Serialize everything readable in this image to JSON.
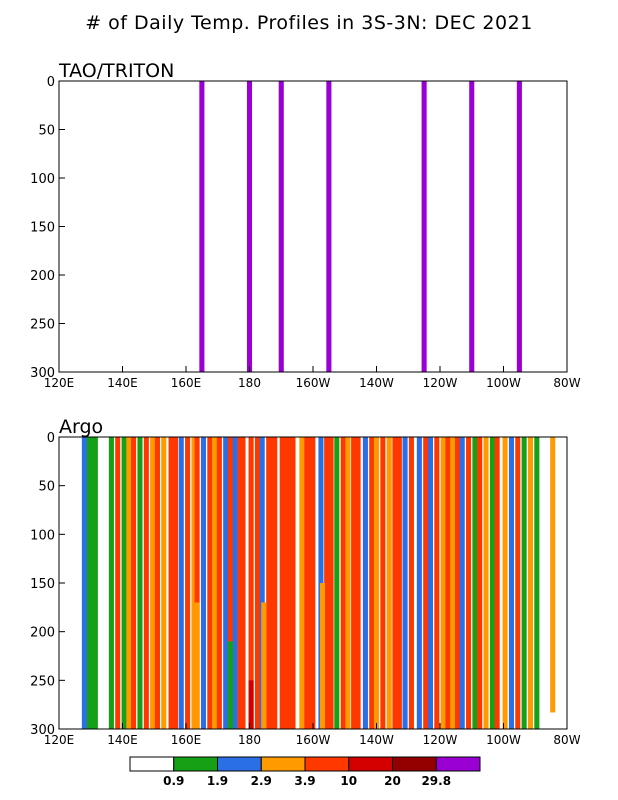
{
  "title": "# of Daily Temp. Profiles in 3S-3N: DEC 2021",
  "legend": {
    "colors": [
      "#ffffff",
      "#15a015",
      "#2a6fe6",
      "#ff9b00",
      "#ff3800",
      "#d40000",
      "#940000",
      "#9a00d4"
    ],
    "labels": [
      "0.9",
      "1.9",
      "2.9",
      "3.9",
      "10",
      "20",
      "29.8"
    ]
  },
  "chart_data": [
    {
      "type": "bar",
      "panel_label": "TAO/TRITON",
      "x_ticks": [
        120,
        140,
        160,
        180,
        200,
        220,
        240,
        260,
        280
      ],
      "x_tick_labels": [
        "120E",
        "140E",
        "160E",
        "180",
        "160W",
        "140W",
        "120W",
        "100W",
        "80W"
      ],
      "y_ticks": [
        0,
        50,
        100,
        150,
        200,
        250,
        300
      ],
      "y_tick_labels": [
        "0",
        "50",
        "100",
        "150",
        "200",
        "250",
        "300"
      ],
      "xlim": [
        120,
        280
      ],
      "ylim": [
        0,
        300
      ],
      "y_reversed": true,
      "grid": false,
      "bars": [
        {
          "lon": 165,
          "top": 0,
          "bottom": 300,
          "color": "#9a00d4",
          "count": 31
        },
        {
          "lon": 180,
          "top": 0,
          "bottom": 300,
          "color": "#9a00d4",
          "count": 31
        },
        {
          "lon": 190,
          "top": 0,
          "bottom": 300,
          "color": "#9a00d4",
          "count": 31
        },
        {
          "lon": 205,
          "top": 0,
          "bottom": 300,
          "color": "#9a00d4",
          "count": 31
        },
        {
          "lon": 235,
          "top": 0,
          "bottom": 300,
          "color": "#9a00d4",
          "count": 31
        },
        {
          "lon": 250,
          "top": 0,
          "bottom": 300,
          "color": "#9a00d4",
          "count": 31
        },
        {
          "lon": 265,
          "top": 0,
          "bottom": 300,
          "color": "#9a00d4",
          "count": 31
        }
      ]
    },
    {
      "type": "bar",
      "panel_label": "Argo",
      "x_ticks": [
        120,
        140,
        160,
        180,
        200,
        220,
        240,
        260,
        280
      ],
      "x_tick_labels": [
        "120E",
        "140E",
        "160E",
        "180",
        "160W",
        "140W",
        "120W",
        "100W",
        "80W"
      ],
      "y_ticks": [
        0,
        50,
        100,
        150,
        200,
        250,
        300
      ],
      "y_tick_labels": [
        "0",
        "50",
        "100",
        "150",
        "200",
        "250",
        "300"
      ],
      "xlim": [
        120,
        280
      ],
      "ylim": [
        0,
        300
      ],
      "y_reversed": true,
      "grid": false,
      "bars": [
        {
          "lon": 128,
          "top": 0,
          "bottom": 300,
          "color": "#2a6fe6"
        },
        {
          "lon": 130.5,
          "top": 0,
          "bottom": 300,
          "color": "#15a015",
          "width": 3.5
        },
        {
          "lon": 136.5,
          "top": 0,
          "bottom": 300,
          "color": "#15a015"
        },
        {
          "lon": 138.5,
          "top": 0,
          "bottom": 300,
          "color": "#ff3800"
        },
        {
          "lon": 140.5,
          "top": 0,
          "bottom": 300,
          "color": "#15a015"
        },
        {
          "lon": 142,
          "top": 0,
          "bottom": 300,
          "color": "#ff9b00"
        },
        {
          "lon": 143.5,
          "top": 0,
          "bottom": 300,
          "color": "#ff3800"
        },
        {
          "lon": 145.5,
          "top": 0,
          "bottom": 300,
          "color": "#15a015"
        },
        {
          "lon": 147.5,
          "top": 0,
          "bottom": 300,
          "color": "#ff3800"
        },
        {
          "lon": 149.5,
          "top": 0,
          "bottom": 300,
          "color": "#ff9b00"
        },
        {
          "lon": 151,
          "top": 0,
          "bottom": 300,
          "color": "#ff3800"
        },
        {
          "lon": 153,
          "top": 0,
          "bottom": 300,
          "color": "#ff9b00"
        },
        {
          "lon": 156,
          "top": 0,
          "bottom": 300,
          "color": "#ff3800",
          "width": 3.0
        },
        {
          "lon": 158.5,
          "top": 0,
          "bottom": 300,
          "color": "#2a6fe6"
        },
        {
          "lon": 160.5,
          "top": 0,
          "bottom": 300,
          "color": "#ff3800"
        },
        {
          "lon": 162.5,
          "top": 0,
          "bottom": 300,
          "color": "#ff9b00"
        },
        {
          "lon": 163.5,
          "top": 0,
          "bottom": 300,
          "color": "#ff3800"
        },
        {
          "lon": 165.5,
          "top": 0,
          "bottom": 300,
          "color": "#2a6fe6"
        },
        {
          "lon": 167.5,
          "top": 0,
          "bottom": 300,
          "color": "#ff3800"
        },
        {
          "lon": 169,
          "top": 0,
          "bottom": 300,
          "color": "#ff9b00"
        },
        {
          "lon": 170.5,
          "top": 0,
          "bottom": 300,
          "color": "#ff3800"
        },
        {
          "lon": 172.5,
          "top": 0,
          "bottom": 300,
          "color": "#2a6fe6"
        },
        {
          "lon": 174,
          "top": 0,
          "bottom": 300,
          "color": "#ff3800"
        },
        {
          "lon": 175.5,
          "top": 0,
          "bottom": 300,
          "color": "#2a6fe6"
        },
        {
          "lon": 177.5,
          "top": 0,
          "bottom": 300,
          "color": "#ff3800",
          "width": 2.5
        },
        {
          "lon": 180.5,
          "top": 0,
          "bottom": 300,
          "color": "#ff3800"
        },
        {
          "lon": 182.5,
          "top": 0,
          "bottom": 300,
          "color": "#ff3800"
        },
        {
          "lon": 184,
          "top": 0,
          "bottom": 300,
          "color": "#2a6fe6"
        },
        {
          "lon": 187,
          "top": 0,
          "bottom": 300,
          "color": "#ff3800",
          "width": 3.5
        },
        {
          "lon": 192,
          "top": 0,
          "bottom": 300,
          "color": "#ff3800",
          "width": 5.0
        },
        {
          "lon": 196.5,
          "top": 0,
          "bottom": 300,
          "color": "#ff9b00"
        },
        {
          "lon": 199,
          "top": 0,
          "bottom": 300,
          "color": "#ff3800",
          "width": 3.5
        },
        {
          "lon": 202.5,
          "top": 0,
          "bottom": 300,
          "color": "#2a6fe6"
        },
        {
          "lon": 205,
          "top": 0,
          "bottom": 300,
          "color": "#ff3800",
          "width": 3.0
        },
        {
          "lon": 207.5,
          "top": 0,
          "bottom": 300,
          "color": "#15a015"
        },
        {
          "lon": 209.5,
          "top": 0,
          "bottom": 300,
          "color": "#ff3800"
        },
        {
          "lon": 211,
          "top": 0,
          "bottom": 300,
          "color": "#ff9b00"
        },
        {
          "lon": 213.5,
          "top": 0,
          "bottom": 300,
          "color": "#ff3800",
          "width": 3.0
        },
        {
          "lon": 216.5,
          "top": 0,
          "bottom": 300,
          "color": "#2a6fe6"
        },
        {
          "lon": 218.5,
          "top": 0,
          "bottom": 300,
          "color": "#ff3800"
        },
        {
          "lon": 220,
          "top": 0,
          "bottom": 300,
          "color": "#ff9b00"
        },
        {
          "lon": 222,
          "top": 0,
          "bottom": 300,
          "color": "#ff3800"
        },
        {
          "lon": 224,
          "top": 0,
          "bottom": 300,
          "color": "#ff9b00"
        },
        {
          "lon": 226.5,
          "top": 0,
          "bottom": 300,
          "color": "#ff3800",
          "width": 3.0
        },
        {
          "lon": 229,
          "top": 0,
          "bottom": 300,
          "color": "#2a6fe6"
        },
        {
          "lon": 231,
          "top": 0,
          "bottom": 300,
          "color": "#ff3800"
        },
        {
          "lon": 233.5,
          "top": 0,
          "bottom": 300,
          "color": "#2a6fe6"
        },
        {
          "lon": 235.5,
          "top": 0,
          "bottom": 300,
          "color": "#ff3800"
        },
        {
          "lon": 237,
          "top": 0,
          "bottom": 300,
          "color": "#2a6fe6"
        },
        {
          "lon": 239,
          "top": 0,
          "bottom": 300,
          "color": "#ff3800"
        },
        {
          "lon": 241,
          "top": 0,
          "bottom": 300,
          "color": "#ff9b00"
        },
        {
          "lon": 242.5,
          "top": 0,
          "bottom": 300,
          "color": "#ff3800"
        },
        {
          "lon": 244,
          "top": 0,
          "bottom": 300,
          "color": "#ff9b00"
        },
        {
          "lon": 245.5,
          "top": 0,
          "bottom": 300,
          "color": "#ff3800"
        },
        {
          "lon": 247,
          "top": 0,
          "bottom": 300,
          "color": "#2a6fe6"
        },
        {
          "lon": 249,
          "top": 0,
          "bottom": 300,
          "color": "#ff3800"
        },
        {
          "lon": 251,
          "top": 0,
          "bottom": 300,
          "color": "#15a015"
        },
        {
          "lon": 252.5,
          "top": 0,
          "bottom": 300,
          "color": "#ff3800"
        },
        {
          "lon": 254.5,
          "top": 0,
          "bottom": 300,
          "color": "#ff9b00"
        },
        {
          "lon": 256.5,
          "top": 0,
          "bottom": 300,
          "color": "#15a015"
        },
        {
          "lon": 258,
          "top": 0,
          "bottom": 300,
          "color": "#ff3800"
        },
        {
          "lon": 260.5,
          "top": 0,
          "bottom": 300,
          "color": "#ff9b00"
        },
        {
          "lon": 262.5,
          "top": 0,
          "bottom": 300,
          "color": "#2a6fe6"
        },
        {
          "lon": 264.5,
          "top": 0,
          "bottom": 300,
          "color": "#ff3800"
        },
        {
          "lon": 266.5,
          "top": 0,
          "bottom": 300,
          "color": "#15a015"
        },
        {
          "lon": 268.5,
          "top": 0,
          "bottom": 300,
          "color": "#ff9b00"
        },
        {
          "lon": 270.5,
          "top": 0,
          "bottom": 300,
          "color": "#15a015"
        },
        {
          "lon": 275.5,
          "top": 0,
          "bottom": 283,
          "color": "#ff9b00"
        },
        {
          "lon": 163.5,
          "top": 170,
          "bottom": 300,
          "color": "#ff9b00"
        },
        {
          "lon": 174,
          "top": 210,
          "bottom": 300,
          "color": "#15a015"
        },
        {
          "lon": 180.5,
          "top": 250,
          "bottom": 300,
          "color": "#d40000"
        },
        {
          "lon": 184.5,
          "top": 170,
          "bottom": 300,
          "color": "#ff9b00"
        },
        {
          "lon": 203,
          "top": 150,
          "bottom": 300,
          "color": "#ff9b00"
        }
      ]
    }
  ]
}
